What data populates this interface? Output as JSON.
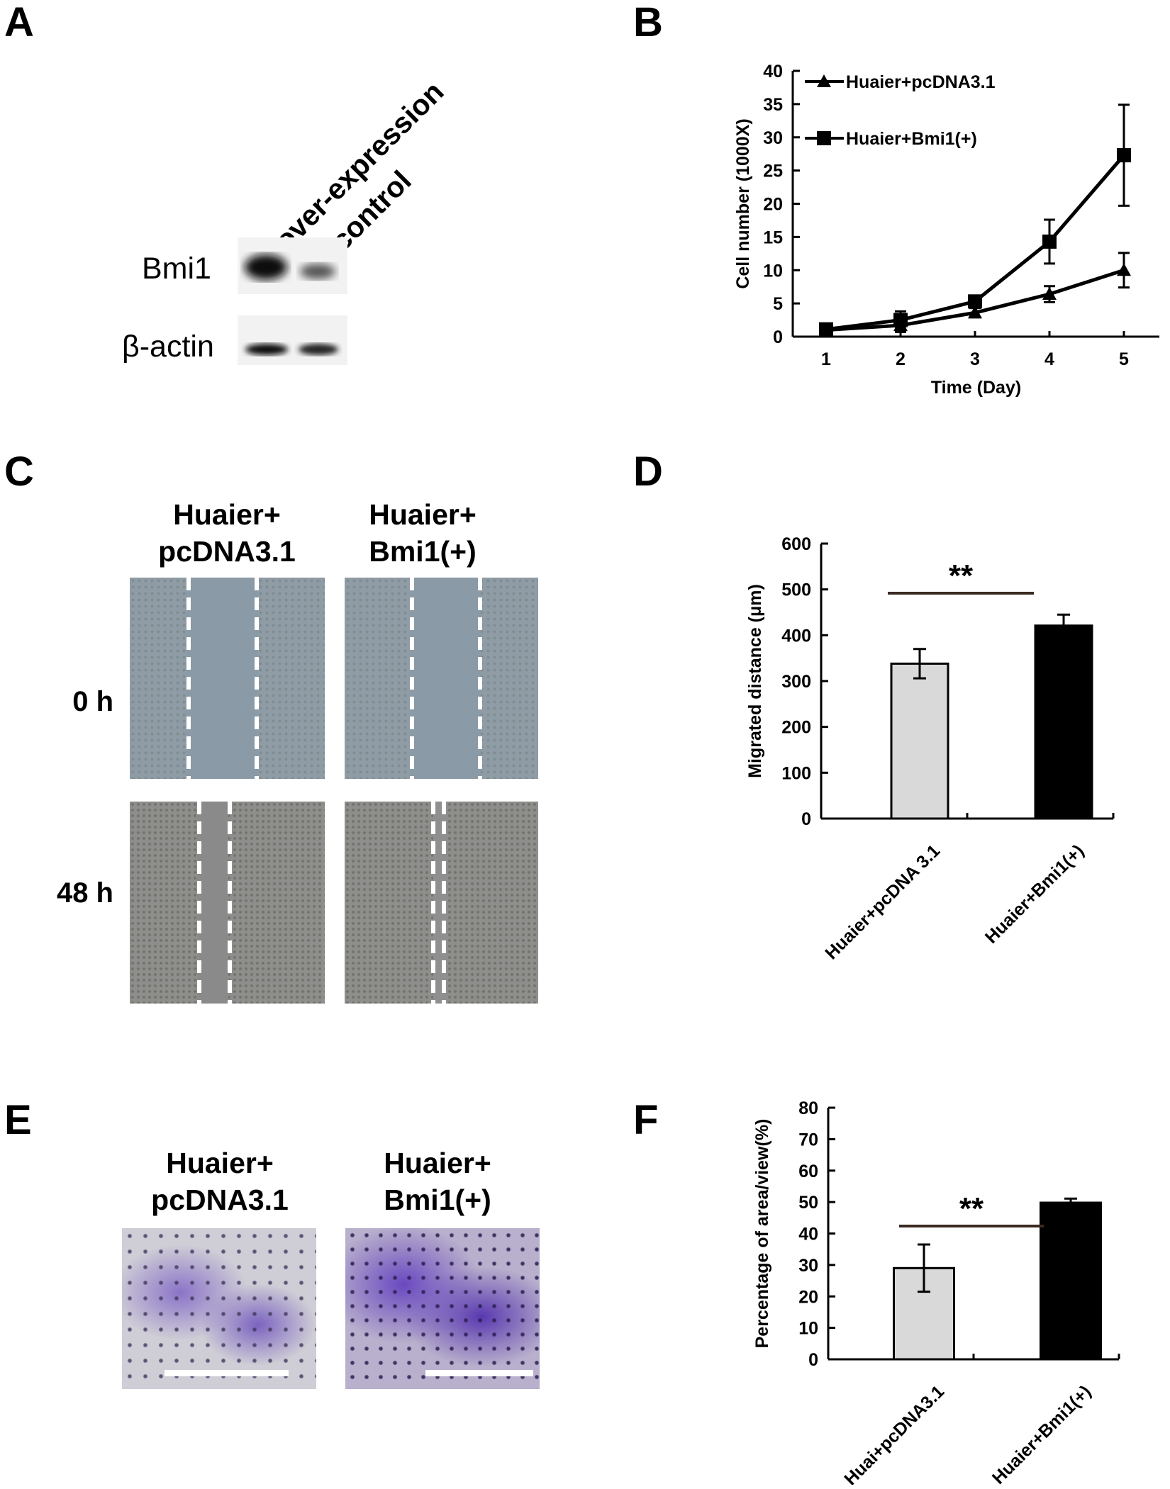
{
  "panels": {
    "A": {
      "letter": "A",
      "lanes": [
        "over-expression",
        "control"
      ],
      "rows": [
        "Bmi1",
        "β-actin"
      ]
    },
    "B": {
      "letter": "B"
    },
    "C": {
      "letter": "C",
      "col_headers": [
        [
          "Huaier+",
          "pcDNA3.1"
        ],
        [
          "Huaier+",
          "Bmi1(+)"
        ]
      ],
      "row_labels": [
        "0 h",
        "48 h"
      ]
    },
    "D": {
      "letter": "D"
    },
    "E": {
      "letter": "E",
      "col_headers": [
        [
          "Huaier+",
          "pcDNA3.1"
        ],
        [
          "Huaier+",
          "Bmi1(+)"
        ]
      ]
    },
    "F": {
      "letter": "F"
    }
  },
  "chart_data": [
    {
      "panel": "B",
      "type": "line",
      "x": [
        1,
        2,
        3,
        4,
        5
      ],
      "series": [
        {
          "name": "Huaier+pcDNA3.1",
          "marker": "triangle",
          "values": [
            1.0,
            1.7,
            3.6,
            6.4,
            10.0
          ],
          "errors": [
            0.4,
            1.0,
            0.7,
            1.2,
            2.6
          ]
        },
        {
          "name": "Huaier+Bmi1(+)",
          "marker": "square",
          "values": [
            1.1,
            2.5,
            5.3,
            14.3,
            27.3
          ],
          "errors": [
            0.4,
            1.3,
            0.8,
            3.3,
            7.6
          ]
        }
      ],
      "xlabel": "Time (Day)",
      "ylabel": "Cell number (1000X)",
      "ylim": [
        0,
        40
      ],
      "yticks": [
        0,
        5,
        10,
        15,
        20,
        25,
        30,
        35,
        40
      ],
      "legend": "top-left",
      "grid": false
    },
    {
      "panel": "D",
      "type": "bar",
      "categories": [
        "Huaier+pcDNA 3.1",
        "Huaier+Bmi1(+)"
      ],
      "values": [
        338,
        421
      ],
      "errors": [
        32,
        24
      ],
      "colors": [
        "#d9d9d9",
        "#000000"
      ],
      "ylabel": "Migrated distance (μm)",
      "ylim": [
        0,
        600
      ],
      "yticks": [
        0,
        100,
        200,
        300,
        400,
        500,
        600
      ],
      "significance": "**",
      "grid": false
    },
    {
      "panel": "F",
      "type": "bar",
      "categories": [
        "Huai+pcDNA3.1",
        "Huaier+Bmi1(+)"
      ],
      "values": [
        29,
        49.8
      ],
      "errors": [
        7.5,
        1.3
      ],
      "colors": [
        "#d9d9d9",
        "#000000"
      ],
      "ylabel": "Percentage of area/view(%)",
      "ylim": [
        0,
        80
      ],
      "yticks": [
        0,
        10,
        20,
        30,
        40,
        50,
        60,
        70,
        80
      ],
      "significance": "**",
      "grid": false
    }
  ]
}
